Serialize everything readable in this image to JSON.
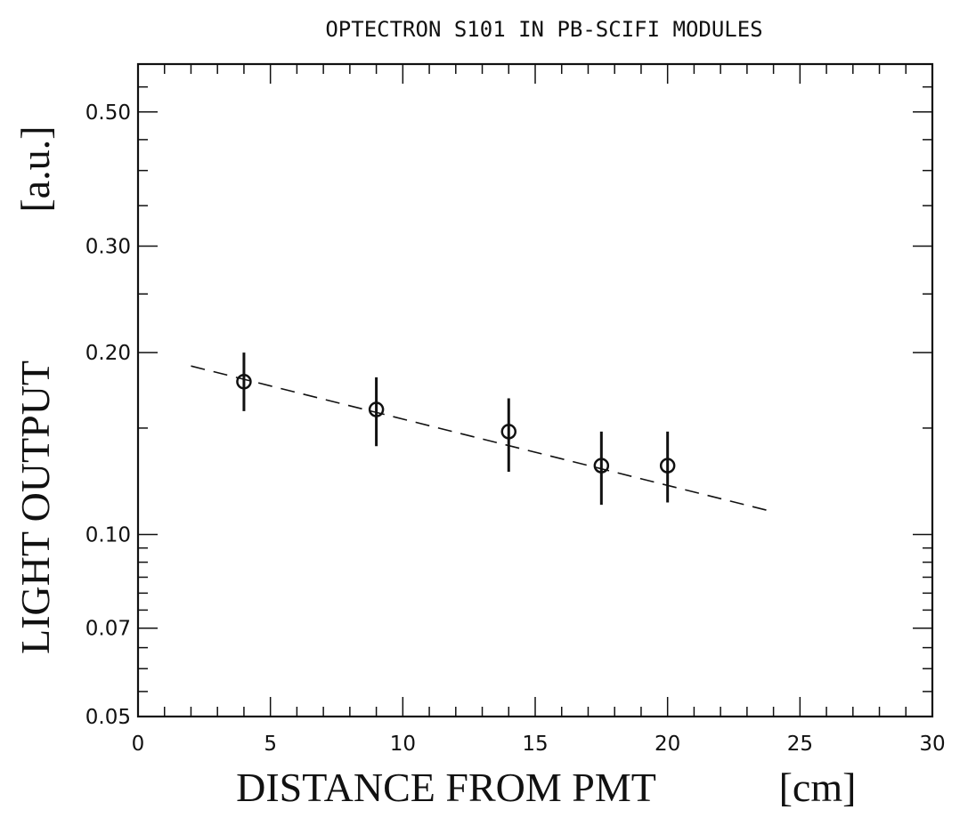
{
  "chart_data": {
    "type": "scatter",
    "title": "OPTECTRON S101 IN PB-SCIFI MODULES",
    "xlabel": "DISTANCE FROM PMT",
    "xunit": "[cm]",
    "ylabel": "LIGHT OUTPUT",
    "yunit": "[a.u.]",
    "y_scale": "log",
    "xlim": [
      0,
      30
    ],
    "ylim": [
      0.05,
      0.6
    ],
    "x_ticks": [
      0,
      5,
      10,
      15,
      20,
      25,
      30
    ],
    "x_tick_labels": [
      "0",
      "5",
      "10",
      "15",
      "20",
      "25",
      "30"
    ],
    "y_ticks": [
      0.05,
      0.07,
      0.1,
      0.2,
      0.3,
      0.5
    ],
    "y_tick_labels": [
      "0.05",
      "0.07",
      "0.10",
      "0.20",
      "0.30",
      "0.50"
    ],
    "grid": false,
    "series": [
      {
        "marker": "open-circle",
        "x": [
          4,
          9,
          14,
          17.5,
          20
        ],
        "y": [
          0.179,
          0.161,
          0.148,
          0.13,
          0.13
        ],
        "y_err_low": [
          0.16,
          0.14,
          0.127,
          0.112,
          0.113
        ],
        "y_err_high": [
          0.2,
          0.182,
          0.168,
          0.148,
          0.148
        ]
      },
      {
        "line_style": "dashed",
        "x": [
          2,
          24
        ],
        "y": [
          0.19,
          0.109
        ]
      }
    ]
  }
}
